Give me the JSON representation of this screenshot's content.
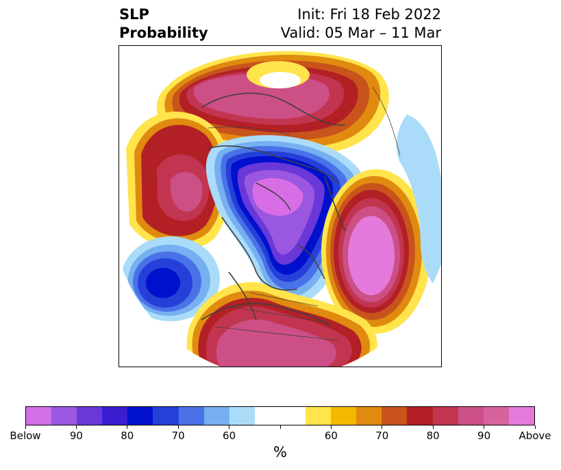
{
  "title": {
    "left_line1": "SLP",
    "left_line2": "Probability",
    "right_line1": "Init: Fri 18 Feb 2022",
    "right_line2": "Valid: 05 Mar – 11 Mar"
  },
  "map": {
    "projection": "north-polar-stereographic",
    "features": [
      {
        "name": "below-max-center-arctic",
        "category": "Below",
        "color": "#d86ee6"
      },
      {
        "name": "below-center-aleutian",
        "category": "Below 80",
        "color": "#0010cc"
      },
      {
        "name": "above-center-atlantic",
        "category": "Above",
        "color": "#e47adb"
      },
      {
        "name": "above-center-siberia",
        "category": "Above",
        "color": "#d8629e"
      },
      {
        "name": "above-center-united-states",
        "category": "Above 90",
        "color": "#cc4f86"
      },
      {
        "name": "above-center-alaska-pacific",
        "category": "Above 90",
        "color": "#d8629e"
      }
    ]
  },
  "colorbar": {
    "unit_label": "%",
    "colors": [
      "#d36ee6",
      "#9a57e0",
      "#6a38d8",
      "#3a1ed0",
      "#0010cc",
      "#2540d8",
      "#4a72e8",
      "#76b0f0",
      "#aadcfa",
      "#ffffff",
      "#ffffff",
      "#ffe44c",
      "#f5b800",
      "#e08a10",
      "#c8541c",
      "#b22025",
      "#c23550",
      "#cc4f86",
      "#d8629e",
      "#e47adb"
    ],
    "tick_labels": [
      "Below",
      "90",
      "80",
      "70",
      "60",
      "",
      "60",
      "70",
      "80",
      "90",
      "Above"
    ]
  }
}
